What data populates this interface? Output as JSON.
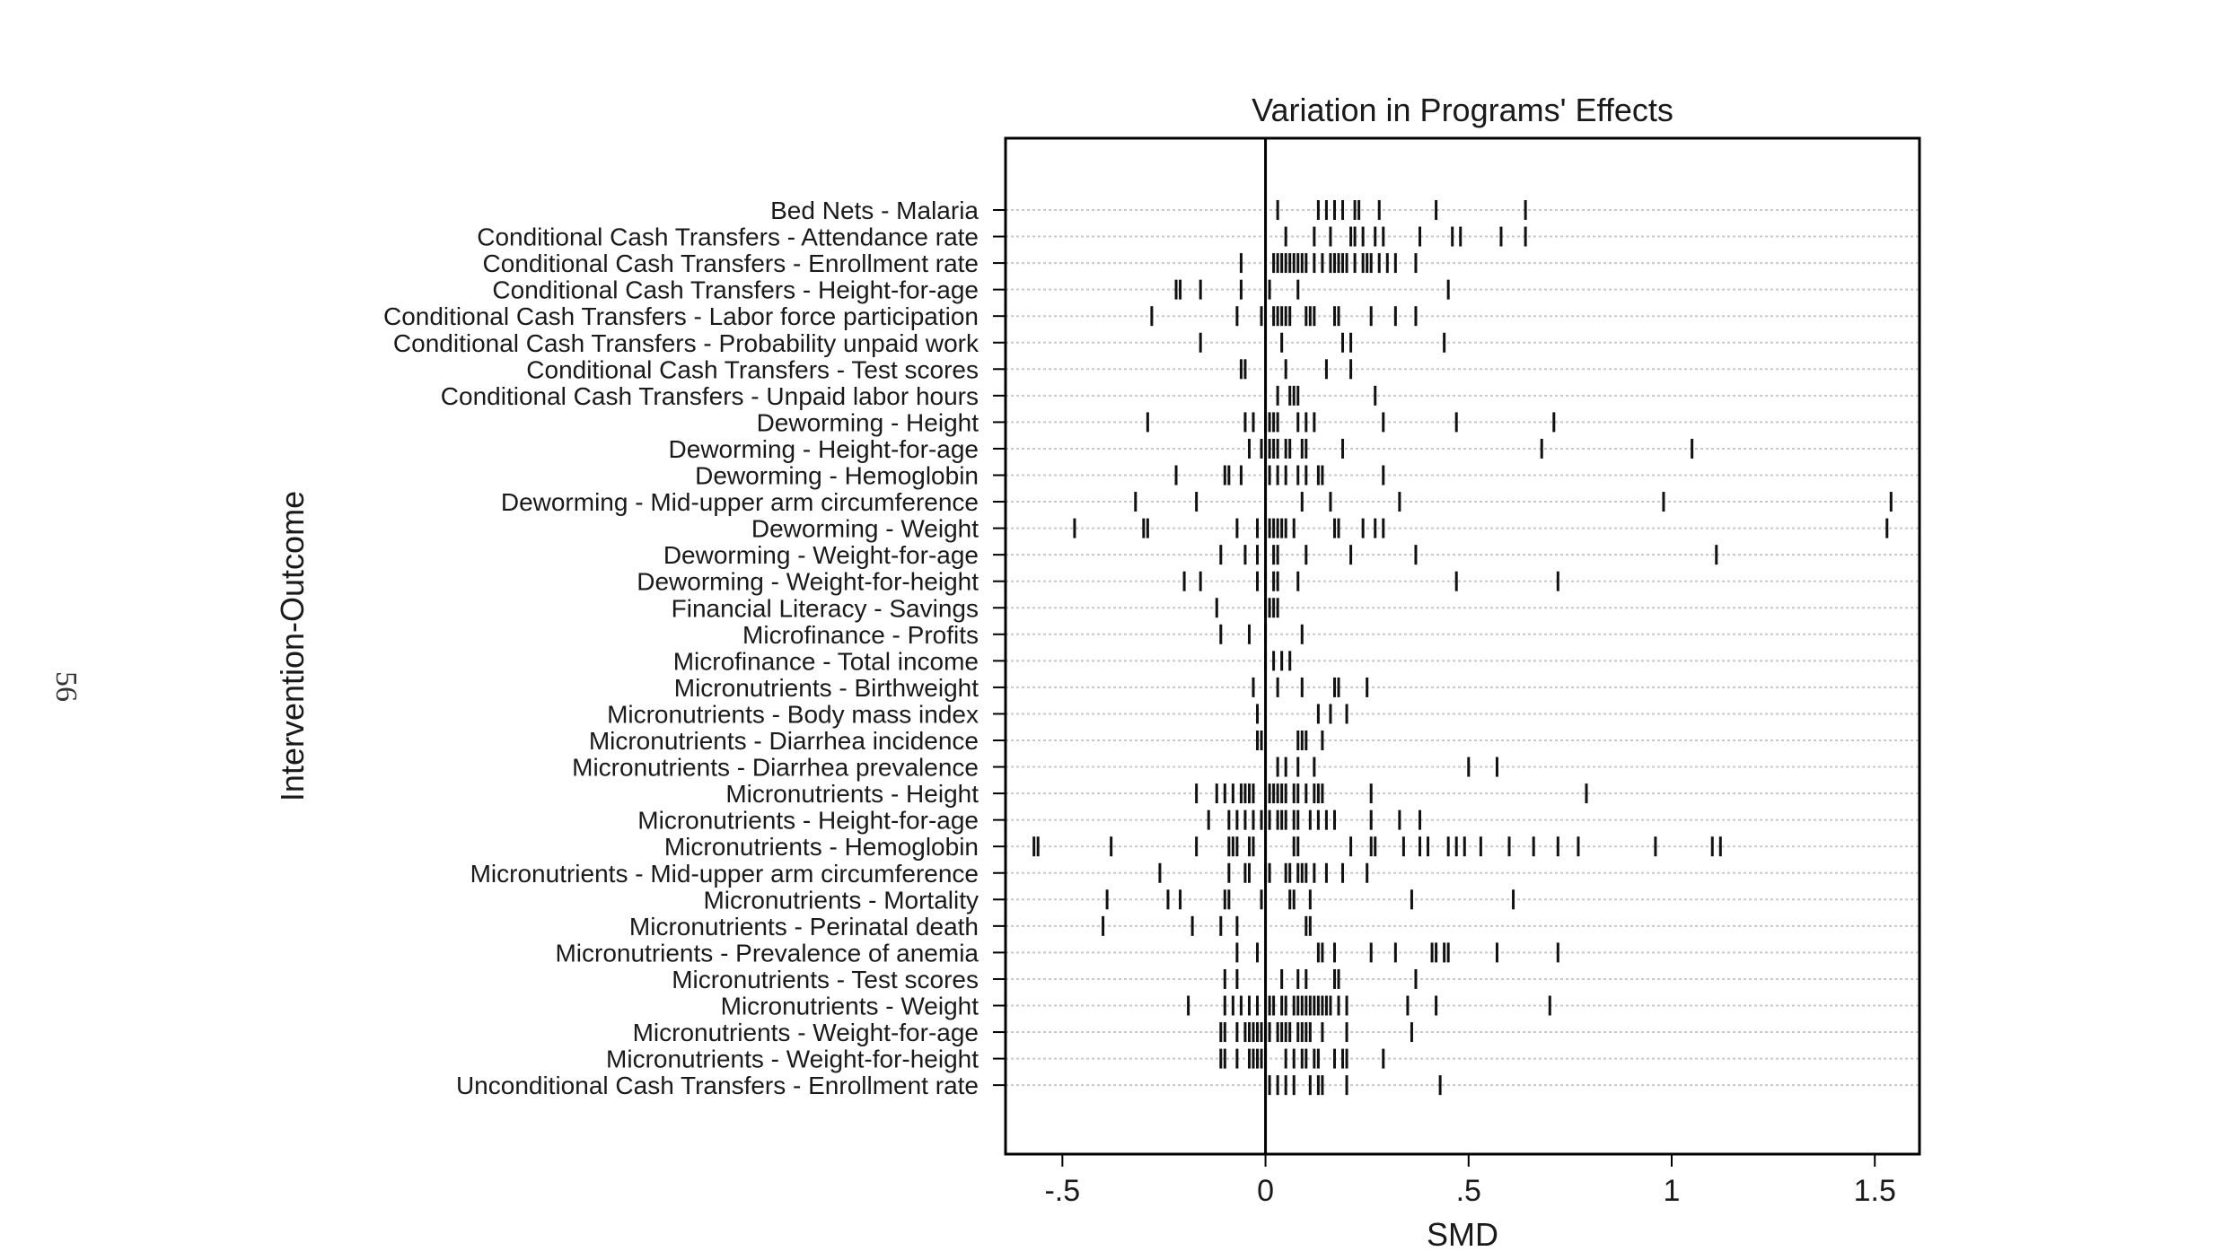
{
  "page_number": "56",
  "chart_data": {
    "type": "scatter",
    "marker": "vertical-tick",
    "title": "Variation in Programs' Effects",
    "xlabel": "SMD",
    "ylabel": "Intervention-Outcome",
    "xlim": [
      -0.64,
      1.61
    ],
    "xticks": [
      -0.5,
      0,
      0.5,
      1,
      1.5
    ],
    "xtick_labels": [
      "-.5",
      "0",
      ".5",
      "1",
      "1.5"
    ],
    "reference_line_x": 0,
    "gridlines": "horizontal-dotted",
    "categories": [
      {
        "label": "Bed Nets - Malaria",
        "values": [
          0.03,
          0.13,
          0.15,
          0.17,
          0.19,
          0.22,
          0.23,
          0.28,
          0.42,
          0.64
        ]
      },
      {
        "label": "Conditional Cash Transfers - Attendance rate",
        "values": [
          0.05,
          0.12,
          0.16,
          0.21,
          0.22,
          0.24,
          0.27,
          0.29,
          0.38,
          0.46,
          0.48,
          0.58,
          0.64
        ]
      },
      {
        "label": "Conditional Cash Transfers - Enrollment rate",
        "values": [
          -0.06,
          0.02,
          0.03,
          0.04,
          0.05,
          0.06,
          0.07,
          0.08,
          0.09,
          0.1,
          0.12,
          0.14,
          0.16,
          0.17,
          0.18,
          0.19,
          0.2,
          0.22,
          0.24,
          0.25,
          0.26,
          0.28,
          0.3,
          0.32,
          0.37
        ]
      },
      {
        "label": "Conditional Cash Transfers - Height-for-age",
        "values": [
          -0.22,
          -0.21,
          -0.16,
          -0.06,
          0.01,
          0.08,
          0.45
        ]
      },
      {
        "label": "Conditional Cash Transfers - Labor force participation",
        "values": [
          -0.28,
          -0.07,
          -0.01,
          0.02,
          0.03,
          0.04,
          0.05,
          0.06,
          0.1,
          0.11,
          0.12,
          0.17,
          0.18,
          0.26,
          0.32,
          0.37
        ]
      },
      {
        "label": "Conditional Cash Transfers - Probability unpaid work",
        "values": [
          -0.16,
          0.04,
          0.19,
          0.21,
          0.44
        ]
      },
      {
        "label": "Conditional Cash Transfers - Test scores",
        "values": [
          -0.06,
          -0.05,
          0.05,
          0.15,
          0.21
        ]
      },
      {
        "label": "Conditional Cash Transfers - Unpaid labor hours",
        "values": [
          0.03,
          0.06,
          0.07,
          0.08,
          0.27
        ]
      },
      {
        "label": "Deworming - Height",
        "values": [
          -0.29,
          -0.05,
          -0.03,
          0.0,
          0.01,
          0.02,
          0.03,
          0.08,
          0.1,
          0.12,
          0.29,
          0.47,
          0.71
        ]
      },
      {
        "label": "Deworming - Height-for-age",
        "values": [
          -0.04,
          -0.01,
          0.01,
          0.02,
          0.03,
          0.05,
          0.06,
          0.09,
          0.1,
          0.19,
          0.68,
          1.05
        ]
      },
      {
        "label": "Deworming - Hemoglobin",
        "values": [
          -0.22,
          -0.1,
          -0.09,
          -0.06,
          0.01,
          0.03,
          0.05,
          0.08,
          0.1,
          0.13,
          0.14,
          0.29
        ]
      },
      {
        "label": "Deworming - Mid-upper arm circumference",
        "values": [
          -0.32,
          -0.17,
          0.09,
          0.16,
          0.33,
          0.98,
          1.54
        ]
      },
      {
        "label": "Deworming - Weight",
        "values": [
          -0.47,
          -0.3,
          -0.29,
          -0.07,
          -0.02,
          0.01,
          0.02,
          0.03,
          0.04,
          0.05,
          0.07,
          0.17,
          0.18,
          0.24,
          0.27,
          0.29,
          1.53
        ]
      },
      {
        "label": "Deworming - Weight-for-age",
        "values": [
          -0.11,
          -0.05,
          -0.02,
          0.02,
          0.03,
          0.1,
          0.21,
          0.37,
          1.11
        ]
      },
      {
        "label": "Deworming - Weight-for-height",
        "values": [
          -0.2,
          -0.16,
          -0.02,
          0.0,
          0.02,
          0.03,
          0.08,
          0.47,
          0.72
        ]
      },
      {
        "label": "Financial Literacy - Savings",
        "values": [
          -0.12,
          0.0,
          0.01,
          0.02,
          0.03
        ]
      },
      {
        "label": "Microfinance - Profits",
        "values": [
          -0.11,
          -0.04,
          0.0,
          0.09
        ]
      },
      {
        "label": "Microfinance - Total income",
        "values": [
          0.0,
          0.02,
          0.04,
          0.06
        ]
      },
      {
        "label": "Micronutrients - Birthweight",
        "values": [
          -0.03,
          0.03,
          0.09,
          0.17,
          0.18,
          0.25
        ]
      },
      {
        "label": "Micronutrients - Body mass index",
        "values": [
          -0.02,
          0.13,
          0.16,
          0.2
        ]
      },
      {
        "label": "Micronutrients - Diarrhea incidence",
        "values": [
          -0.02,
          -0.01,
          0.08,
          0.09,
          0.1,
          0.14
        ]
      },
      {
        "label": "Micronutrients - Diarrhea prevalence",
        "values": [
          0.03,
          0.05,
          0.08,
          0.12,
          0.5,
          0.57
        ]
      },
      {
        "label": "Micronutrients - Height",
        "values": [
          -0.17,
          -0.12,
          -0.1,
          -0.08,
          -0.06,
          -0.05,
          -0.04,
          -0.03,
          0.01,
          0.02,
          0.03,
          0.04,
          0.05,
          0.07,
          0.08,
          0.1,
          0.12,
          0.13,
          0.14,
          0.26,
          0.79
        ]
      },
      {
        "label": "Micronutrients - Height-for-age",
        "values": [
          -0.14,
          -0.09,
          -0.07,
          -0.05,
          -0.03,
          -0.01,
          0.01,
          0.03,
          0.04,
          0.05,
          0.07,
          0.08,
          0.11,
          0.13,
          0.15,
          0.17,
          0.26,
          0.33,
          0.38
        ]
      },
      {
        "label": "Micronutrients - Hemoglobin",
        "values": [
          -0.57,
          -0.56,
          -0.38,
          -0.17,
          -0.09,
          -0.08,
          -0.07,
          -0.04,
          -0.03,
          0.07,
          0.08,
          0.21,
          0.26,
          0.27,
          0.34,
          0.38,
          0.4,
          0.45,
          0.47,
          0.49,
          0.53,
          0.6,
          0.66,
          0.72,
          0.77,
          0.96,
          1.1,
          1.12
        ]
      },
      {
        "label": "Micronutrients - Mid-upper arm circumference",
        "values": [
          -0.26,
          -0.09,
          -0.05,
          -0.04,
          0.0,
          0.01,
          0.05,
          0.06,
          0.08,
          0.09,
          0.1,
          0.12,
          0.15,
          0.19,
          0.25
        ]
      },
      {
        "label": "Micronutrients - Mortality",
        "values": [
          -0.39,
          -0.24,
          -0.21,
          -0.1,
          -0.09,
          -0.01,
          0.06,
          0.07,
          0.11,
          0.36,
          0.61
        ]
      },
      {
        "label": "Micronutrients - Perinatal death",
        "values": [
          -0.4,
          -0.18,
          -0.11,
          -0.07,
          0.1,
          0.11
        ]
      },
      {
        "label": "Micronutrients - Prevalence of anemia",
        "values": [
          -0.07,
          -0.02,
          0.13,
          0.14,
          0.17,
          0.26,
          0.32,
          0.41,
          0.42,
          0.44,
          0.45,
          0.57,
          0.72
        ]
      },
      {
        "label": "Micronutrients - Test scores",
        "values": [
          -0.1,
          -0.07,
          0.04,
          0.08,
          0.1,
          0.17,
          0.18,
          0.37
        ]
      },
      {
        "label": "Micronutrients - Weight",
        "values": [
          -0.19,
          -0.1,
          -0.08,
          -0.06,
          -0.04,
          -0.02,
          0.01,
          0.02,
          0.04,
          0.05,
          0.07,
          0.08,
          0.09,
          0.1,
          0.11,
          0.12,
          0.13,
          0.14,
          0.15,
          0.16,
          0.18,
          0.2,
          0.35,
          0.42,
          0.7
        ]
      },
      {
        "label": "Micronutrients - Weight-for-age",
        "values": [
          -0.11,
          -0.1,
          -0.07,
          -0.05,
          -0.04,
          -0.03,
          -0.02,
          -0.01,
          0.0,
          0.01,
          0.03,
          0.04,
          0.05,
          0.06,
          0.08,
          0.09,
          0.1,
          0.11,
          0.14,
          0.2,
          0.36
        ]
      },
      {
        "label": "Micronutrients - Weight-for-height",
        "values": [
          -0.11,
          -0.1,
          -0.07,
          -0.04,
          -0.03,
          -0.02,
          -0.01,
          0.0,
          0.05,
          0.07,
          0.09,
          0.1,
          0.12,
          0.13,
          0.17,
          0.19,
          0.2,
          0.29
        ]
      },
      {
        "label": "Unconditional Cash Transfers - Enrollment rate",
        "values": [
          0.01,
          0.03,
          0.05,
          0.07,
          0.11,
          0.13,
          0.14,
          0.2,
          0.43
        ]
      }
    ]
  }
}
